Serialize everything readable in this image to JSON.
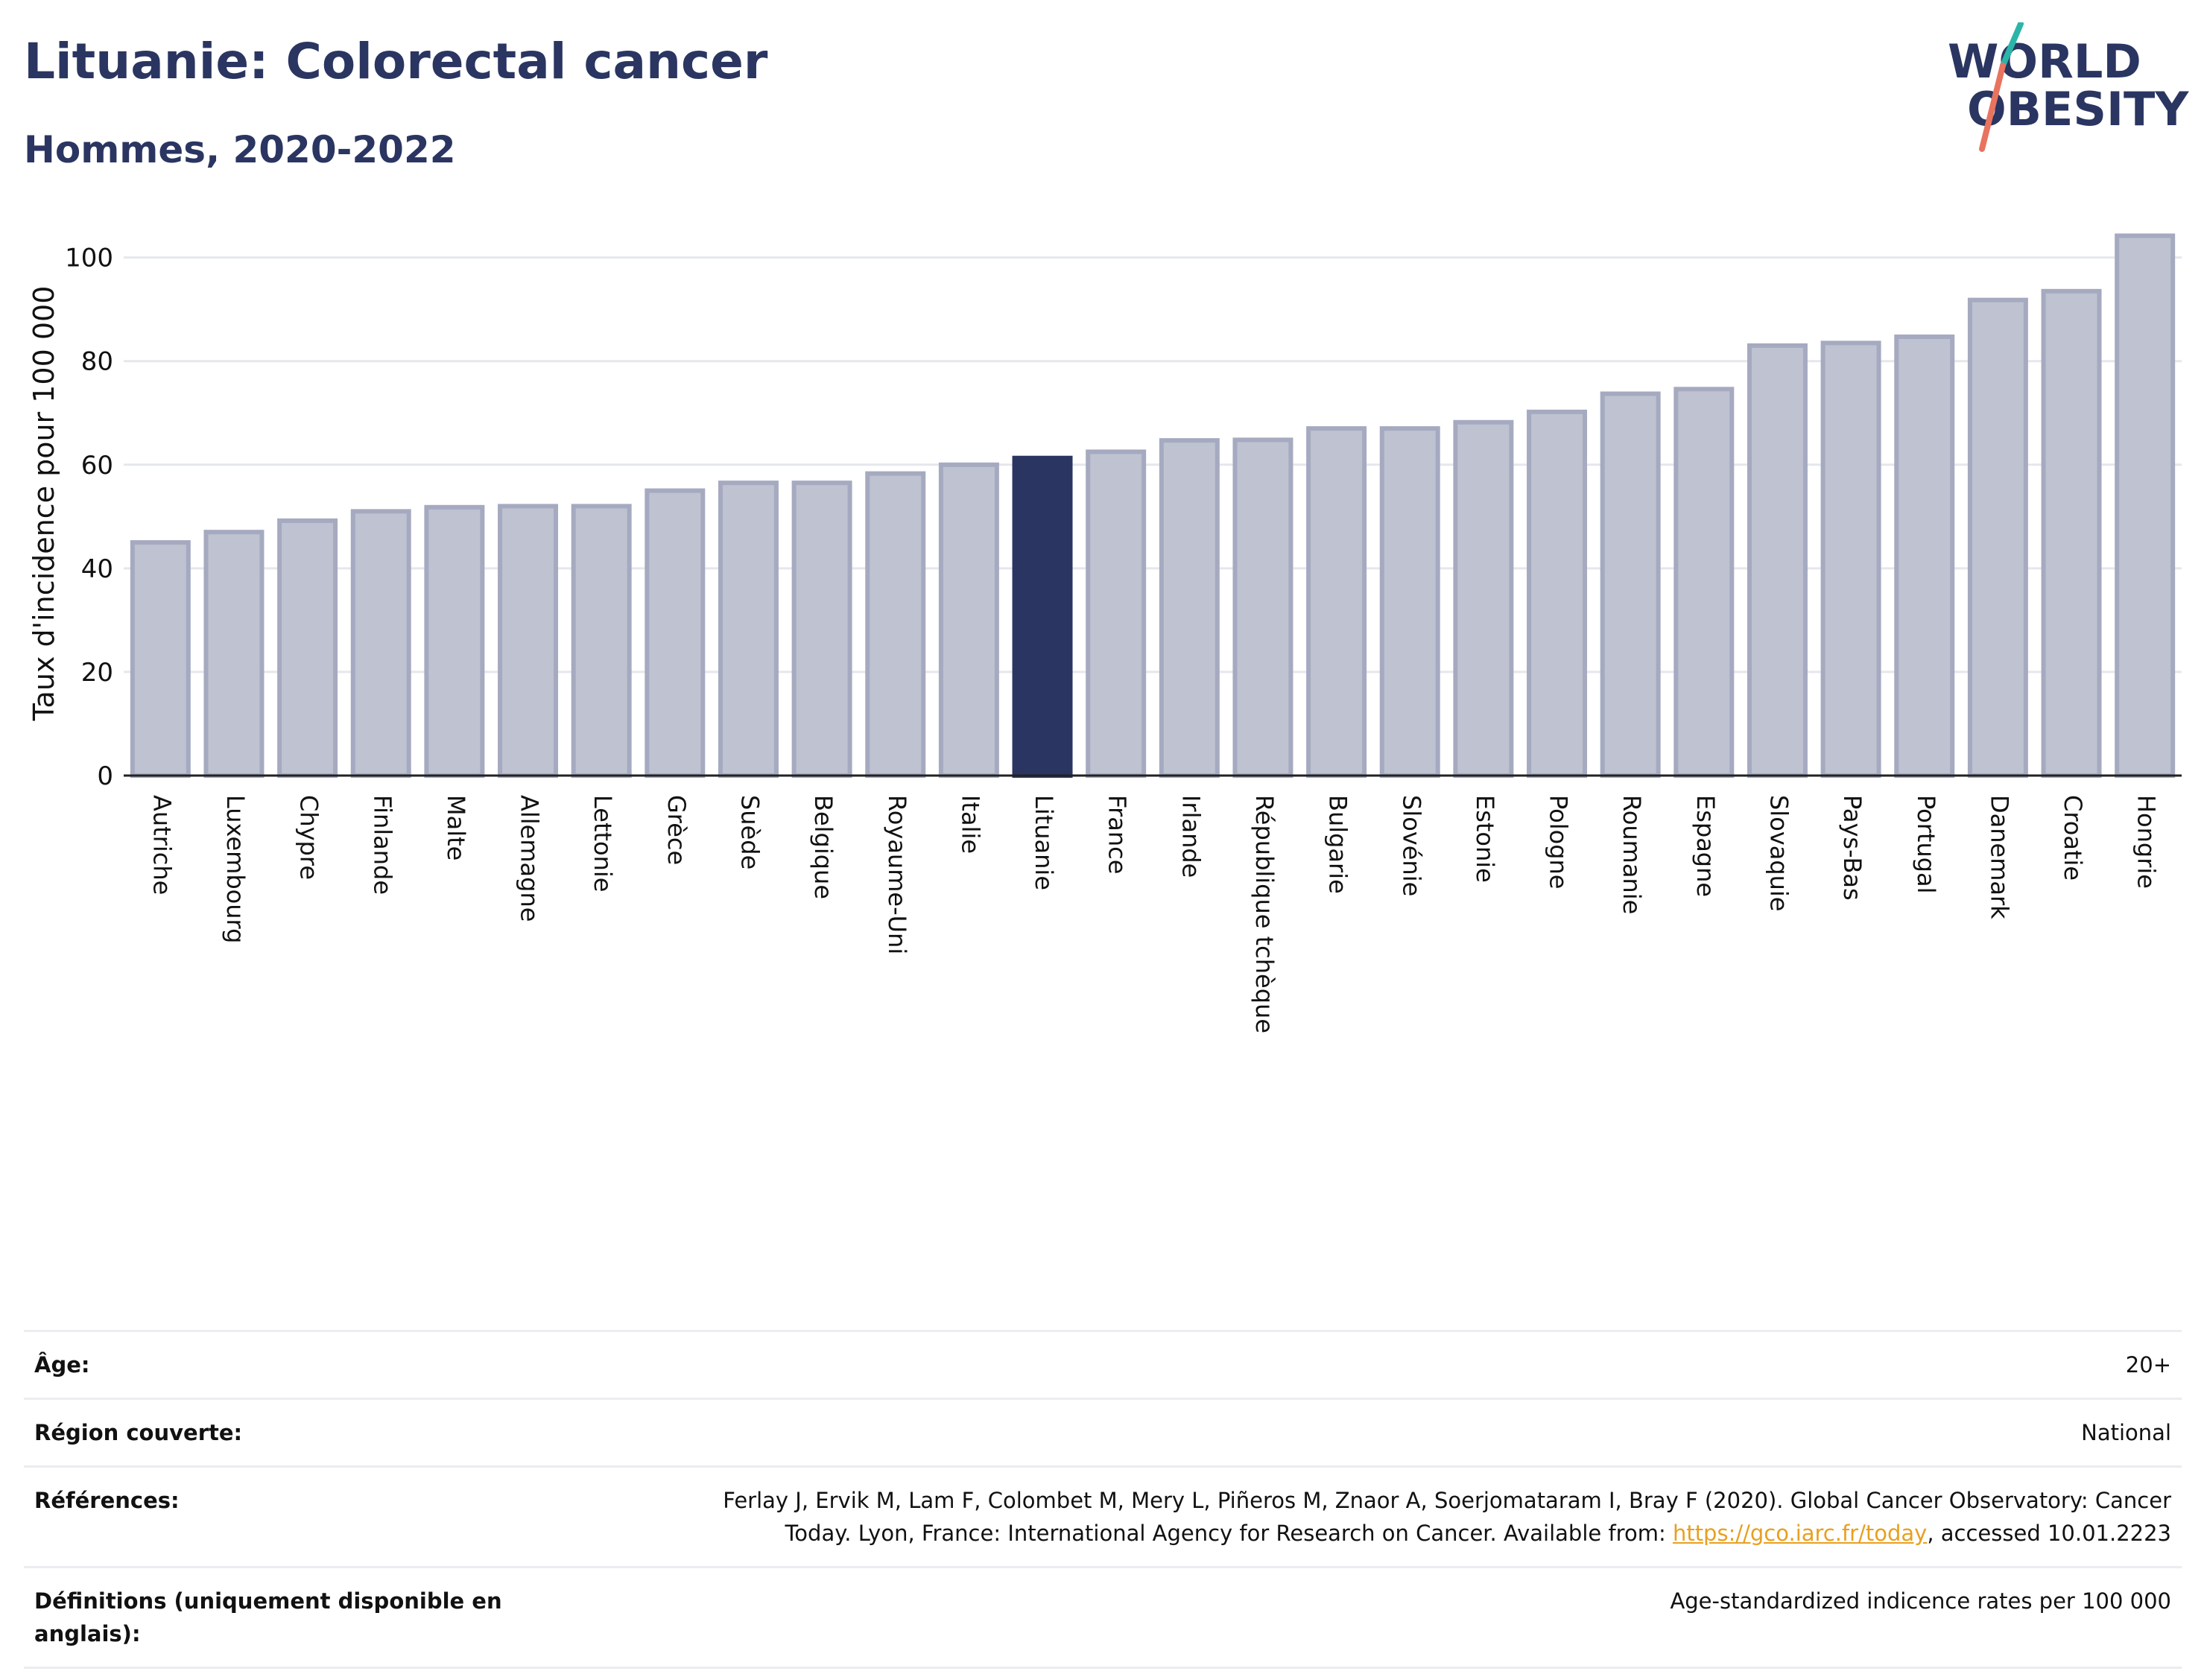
{
  "title": "Lituanie: Colorectal cancer",
  "subtitle": "Hommes, 2020-2022",
  "logo": {
    "line1": "WORLD",
    "line2": "OBESITY"
  },
  "colors": {
    "highlight": "#2a3561",
    "bar_fill": "#bfc2d0",
    "bar_stroke": "#a5aac0",
    "accent_teal": "#2bb5a8",
    "accent_coral": "#e8735f",
    "link": "#e8a020"
  },
  "chart_data": {
    "type": "bar",
    "title": "Lituanie: Colorectal cancer",
    "subtitle": "Hommes, 2020-2022",
    "xlabel": "",
    "ylabel": "Taux d'incidence pour 100 000",
    "ylim": [
      0,
      108
    ],
    "yticks": [
      0,
      20,
      40,
      60,
      80,
      100
    ],
    "grid": true,
    "highlight": "Lituanie",
    "categories": [
      "Autriche",
      "Luxembourg",
      "Chypre",
      "Finlande",
      "Malte",
      "Allemagne",
      "Lettonie",
      "Grèce",
      "Suède",
      "Belgique",
      "Royaume-Uni",
      "Italie",
      "Lituanie",
      "France",
      "Irlande",
      "République tchèque",
      "Bulgarie",
      "Slovénie",
      "Estonie",
      "Pologne",
      "Roumanie",
      "Espagne",
      "Slovaquie",
      "Pays-Bas",
      "Portugal",
      "Danemark",
      "Croatie",
      "Hongrie"
    ],
    "values": [
      45,
      47,
      49.2,
      51,
      51.8,
      52,
      52,
      55,
      56.5,
      56.5,
      58.3,
      60,
      61.3,
      62.5,
      64.7,
      64.8,
      67,
      67,
      68.2,
      70.2,
      73.7,
      74.6,
      83,
      83.5,
      84.7,
      91.8,
      93.5,
      104.2
    ]
  },
  "meta": {
    "age_label": "Âge:",
    "age_value": "20+",
    "region_label": "Région couverte:",
    "region_value": "National",
    "refs_label": "Références:",
    "refs_text_1": "Ferlay J, Ervik M, Lam F, Colombet M, Mery L, Piñeros M, Znaor A, Soerjomataram I, Bray F (2020). Global Cancer Observatory: Cancer",
    "refs_text_2": "Today. Lyon, France: International Agency for Research on Cancer. Available from: ",
    "refs_link": "https://gco.iarc.fr/today",
    "refs_text_3": ", accessed 10.01.2223",
    "defs_label": "Définitions (uniquement disponible en anglais):",
    "defs_value": "Age-standardized indicence rates per 100 000"
  }
}
